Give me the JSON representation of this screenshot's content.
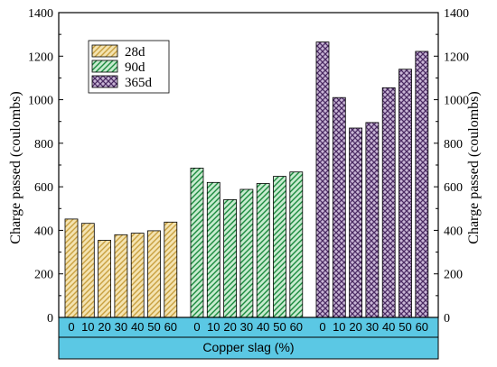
{
  "chart_data": {
    "type": "bar",
    "categories": [
      "0",
      "10",
      "20",
      "30",
      "40",
      "50",
      "60"
    ],
    "series": [
      {
        "name": "28d",
        "values": [
          452,
          432,
          354,
          380,
          387,
          398,
          438
        ],
        "color": "#c8a040",
        "fill": "#f4e3b0",
        "pattern": "diagonal-hatch"
      },
      {
        "name": "90d",
        "values": [
          686,
          620,
          541,
          588,
          615,
          648,
          668
        ],
        "color": "#1b8a3e",
        "fill": "#c7ebcf",
        "pattern": "diagonal-hatch"
      },
      {
        "name": "365d",
        "values": [
          1265,
          1010,
          870,
          895,
          1055,
          1140,
          1222
        ],
        "color": "#4b2b63",
        "fill": "#c9b6d6",
        "pattern": "crosshatch"
      }
    ],
    "ylabel": "Charge passed (coulombs)",
    "ylabel_right": "Charge passed (coulombs)",
    "xlabel": "Copper slag (%)",
    "ylim": [
      0,
      1400
    ],
    "yticks": [
      0,
      200,
      400,
      600,
      800,
      1000,
      1200,
      1400
    ],
    "grid": false,
    "legend_position": "top-left",
    "category_band_color": "#5bc8e4"
  }
}
